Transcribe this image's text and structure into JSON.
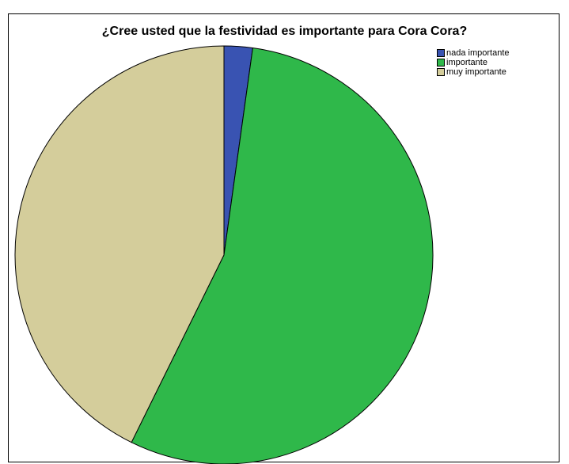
{
  "chart_data": {
    "type": "pie",
    "title": "¿Cree usted que la festividad es importante para Cora Cora?",
    "categories": [
      "nada importante",
      "importante",
      "muy importante"
    ],
    "values": [
      2.2,
      55.1,
      42.7
    ],
    "colors": [
      "#3953b2",
      "#2fb84a",
      "#d4cd9b"
    ],
    "legend_position": "top-right",
    "start_angle_deg": 0,
    "direction": "clockwise"
  }
}
